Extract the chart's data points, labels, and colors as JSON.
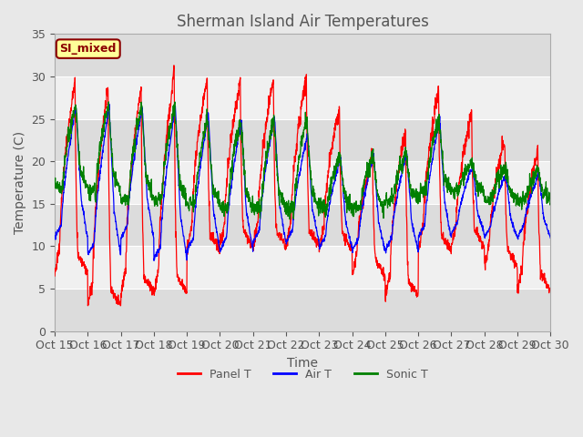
{
  "title": "Sherman Island Air Temperatures",
  "xlabel": "Time",
  "ylabel": "Temperature (C)",
  "ylim": [
    0,
    35
  ],
  "annotation_text": "SI_mixed",
  "annotation_color": "#8B0000",
  "annotation_bg": "#FFFF99",
  "legend_labels": [
    "Panel T",
    "Air T",
    "Sonic T"
  ],
  "line_colors": [
    "red",
    "blue",
    "green"
  ],
  "x_tick_labels": [
    "Oct 15",
    "Oct 16",
    "Oct 17",
    "Oct 18",
    "Oct 19",
    "Oct 20",
    "Oct 21",
    "Oct 22",
    "Oct 23",
    "Oct 24",
    "Oct 25",
    "Oct 26",
    "Oct 27",
    "Oct 28",
    "Oct 29",
    "Oct 30"
  ],
  "bg_color": "#E8E8E8",
  "plot_bg": "#F0F0F0",
  "grid_color": "#FFFFFF",
  "title_color": "#555555",
  "axis_label_color": "#555555",
  "tick_label_color": "#555555",
  "figsize": [
    6.4,
    4.8
  ],
  "dpi": 100
}
